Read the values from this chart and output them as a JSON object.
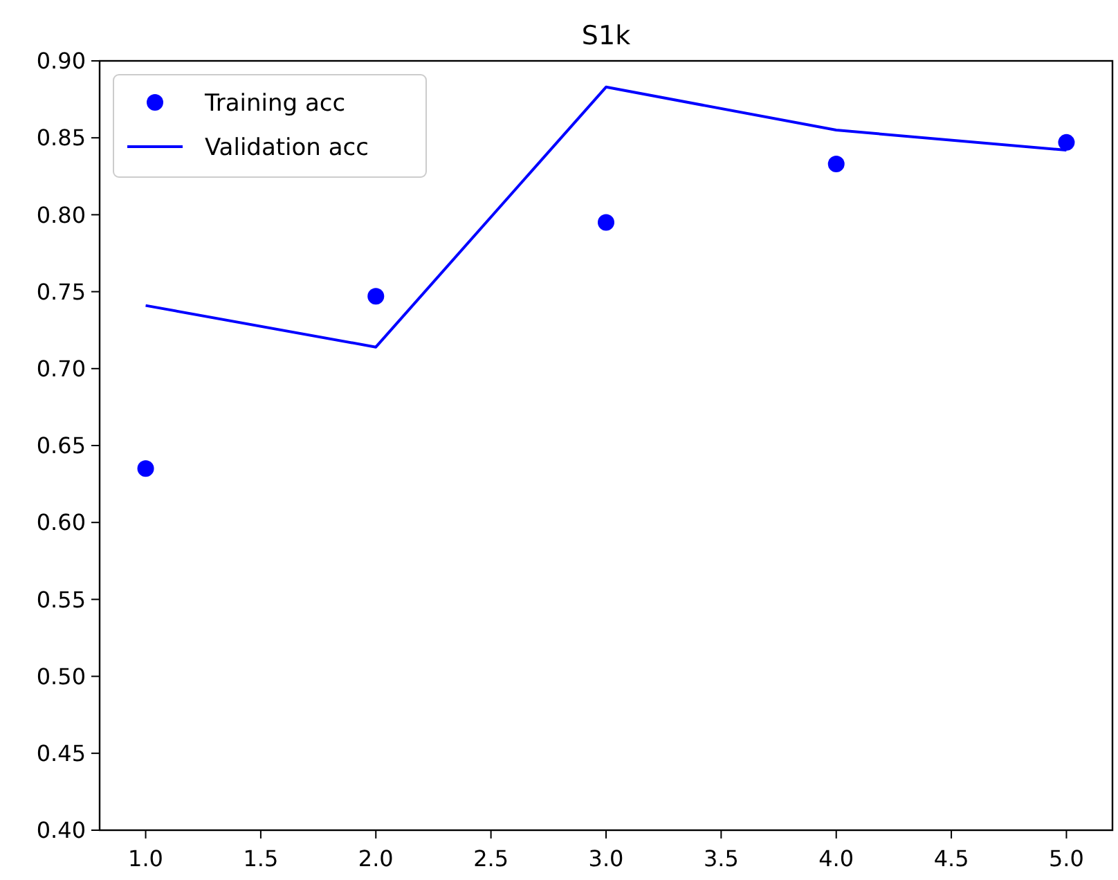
{
  "chart_data": {
    "type": "line",
    "title": "S1k",
    "x": [
      1,
      2,
      3,
      4,
      5
    ],
    "series": [
      {
        "name": "Training acc",
        "type": "scatter",
        "color": "#0000ff",
        "marker": "circle",
        "values": [
          0.635,
          0.747,
          0.795,
          0.833,
          0.847
        ]
      },
      {
        "name": "Validation acc",
        "type": "line",
        "color": "#0000ff",
        "marker": "none",
        "line_style": "solid",
        "values": [
          0.741,
          0.714,
          0.883,
          0.855,
          0.842
        ]
      }
    ],
    "xlim": [
      0.8,
      5.2
    ],
    "xticks": [
      {
        "value": 1,
        "label": "1.0"
      },
      {
        "value": 1.5,
        "label": "1.5"
      },
      {
        "value": 2,
        "label": "2.0"
      },
      {
        "value": 2.5,
        "label": "2.5"
      },
      {
        "value": 3,
        "label": "3.0"
      },
      {
        "value": 3.5,
        "label": "3.5"
      },
      {
        "value": 4,
        "label": "4.0"
      },
      {
        "value": 4.5,
        "label": "4.5"
      },
      {
        "value": 5,
        "label": "5.0"
      }
    ],
    "ylim": [
      0.4,
      0.9
    ],
    "yticks": [
      {
        "value": 0.4,
        "label": "0.40"
      },
      {
        "value": 0.45,
        "label": "0.45"
      },
      {
        "value": 0.5,
        "label": "0.50"
      },
      {
        "value": 0.55,
        "label": "0.55"
      },
      {
        "value": 0.6,
        "label": "0.60"
      },
      {
        "value": 0.65,
        "label": "0.65"
      },
      {
        "value": 0.7,
        "label": "0.70"
      },
      {
        "value": 0.75,
        "label": "0.75"
      },
      {
        "value": 0.8,
        "label": "0.80"
      },
      {
        "value": 0.85,
        "label": "0.85"
      },
      {
        "value": 0.9,
        "label": "0.90"
      }
    ],
    "grid": false,
    "legend": "top left"
  }
}
